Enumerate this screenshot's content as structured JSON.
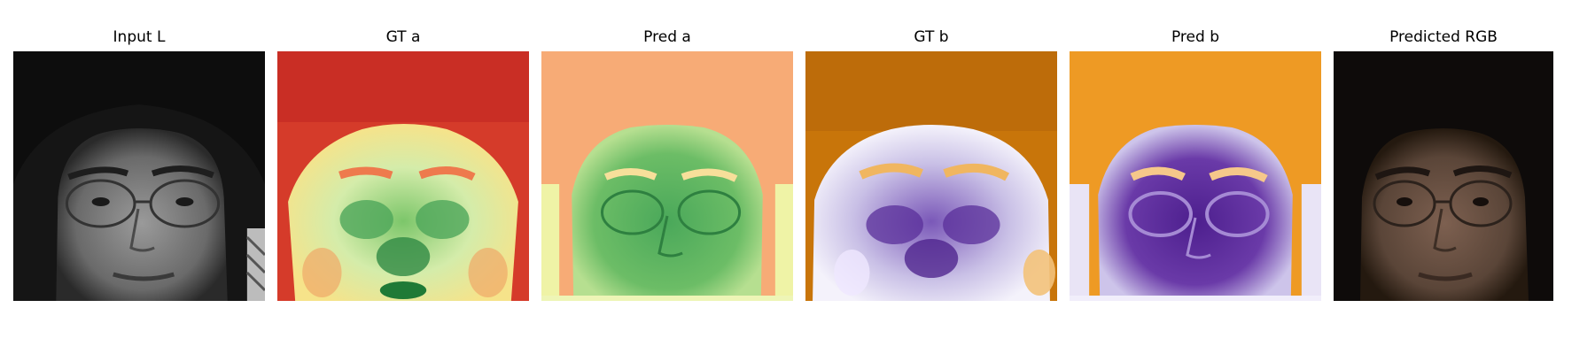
{
  "figure": {
    "panels": [
      {
        "title": "Input L",
        "colormap": "gray",
        "icon": "face-grayscale-image"
      },
      {
        "title": "GT a",
        "colormap": "RdYlGn",
        "icon": "face-a-channel-image"
      },
      {
        "title": "Pred a",
        "colormap": "RdYlGn",
        "icon": "face-a-channel-image"
      },
      {
        "title": "GT b",
        "colormap": "PuOr",
        "icon": "face-b-channel-image"
      },
      {
        "title": "Pred b",
        "colormap": "PuOr",
        "icon": "face-b-channel-image"
      },
      {
        "title": "Predicted RGB",
        "colormap": "rgb",
        "icon": "face-color-image"
      }
    ],
    "colors": {
      "gray_bg": "#141414",
      "gray_face": "#7a7a7a",
      "a_hot": "#c8261f",
      "a_mid": "#f2f3a6",
      "a_cool": "#2a8a3e",
      "pred_a_bg": "#f7a46e",
      "b_warm": "#d07a0a",
      "b_mid": "#f2efff",
      "b_cool": "#4a1a8c",
      "pred_b_bg": "#ef9a22",
      "rgb_bg": "#0d0b0a",
      "rgb_face": "#6b5244"
    }
  }
}
